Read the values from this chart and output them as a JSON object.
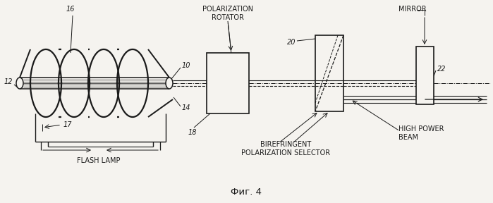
{
  "bg_color": "#f5f3ef",
  "line_color": "#1a1a1a",
  "fig_caption": "Фиг. 4",
  "labels": {
    "flash_lamp": "FLASH LAMP",
    "polarization_rotator": "POLARIZATION\nROTATOR",
    "birefringent": "BIREFRINGENT\nPOLARIZATION SELECTOR",
    "mirror": "MIRROR",
    "high_power_beam": "HIGH POWER\nBEAM",
    "num_12": "12",
    "num_16": "16",
    "num_10": "10",
    "num_14": "14",
    "num_17": "17",
    "num_18": "18",
    "num_20": "20",
    "num_22": "22"
  }
}
